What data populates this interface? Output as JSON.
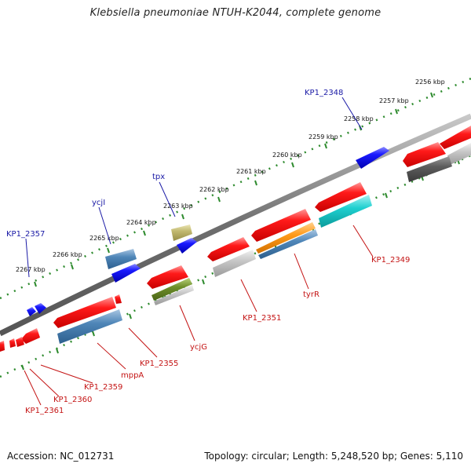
{
  "title": "Klebsiella pneumoniae NTUH-K2044, complete genome",
  "footer": {
    "accession": "Accession: NC_012731",
    "topology": "Topology: circular; Length: 5,248,520 bp; Genes: 5,110"
  },
  "colors": {
    "backbone": "#777777",
    "ruler_dots": "#2e8b2e",
    "plus_label": "#1a1aa6",
    "minus_label": "#c41414",
    "plus_gene": "#1010e0",
    "minus_gene": "#e81010"
  },
  "ruler_ticks": [
    {
      "label": "2256 kbp"
    },
    {
      "label": "2257 kbp"
    },
    {
      "label": "2258 kbp"
    },
    {
      "label": "2259 kbp"
    },
    {
      "label": "2260 kbp"
    },
    {
      "label": "2261 kbp"
    },
    {
      "label": "2262 kbp"
    },
    {
      "label": "2263 kbp"
    },
    {
      "label": "2264 kbp"
    },
    {
      "label": "2265 kbp"
    },
    {
      "label": "2266 kbp"
    },
    {
      "label": "2267 kbp"
    }
  ],
  "plus_labels": [
    {
      "name": "KP1_2348"
    },
    {
      "name": "tpx"
    },
    {
      "name": "ycjI"
    },
    {
      "name": "KP1_2357"
    }
  ],
  "minus_labels": [
    {
      "name": "KP1_2349"
    },
    {
      "name": "tyrR"
    },
    {
      "name": "KP1_2351"
    },
    {
      "name": "ycjG"
    },
    {
      "name": "KP1_2355"
    },
    {
      "name": "mppA"
    },
    {
      "name": "KP1_2359"
    },
    {
      "name": "KP1_2360"
    },
    {
      "name": "KP1_2361"
    }
  ]
}
